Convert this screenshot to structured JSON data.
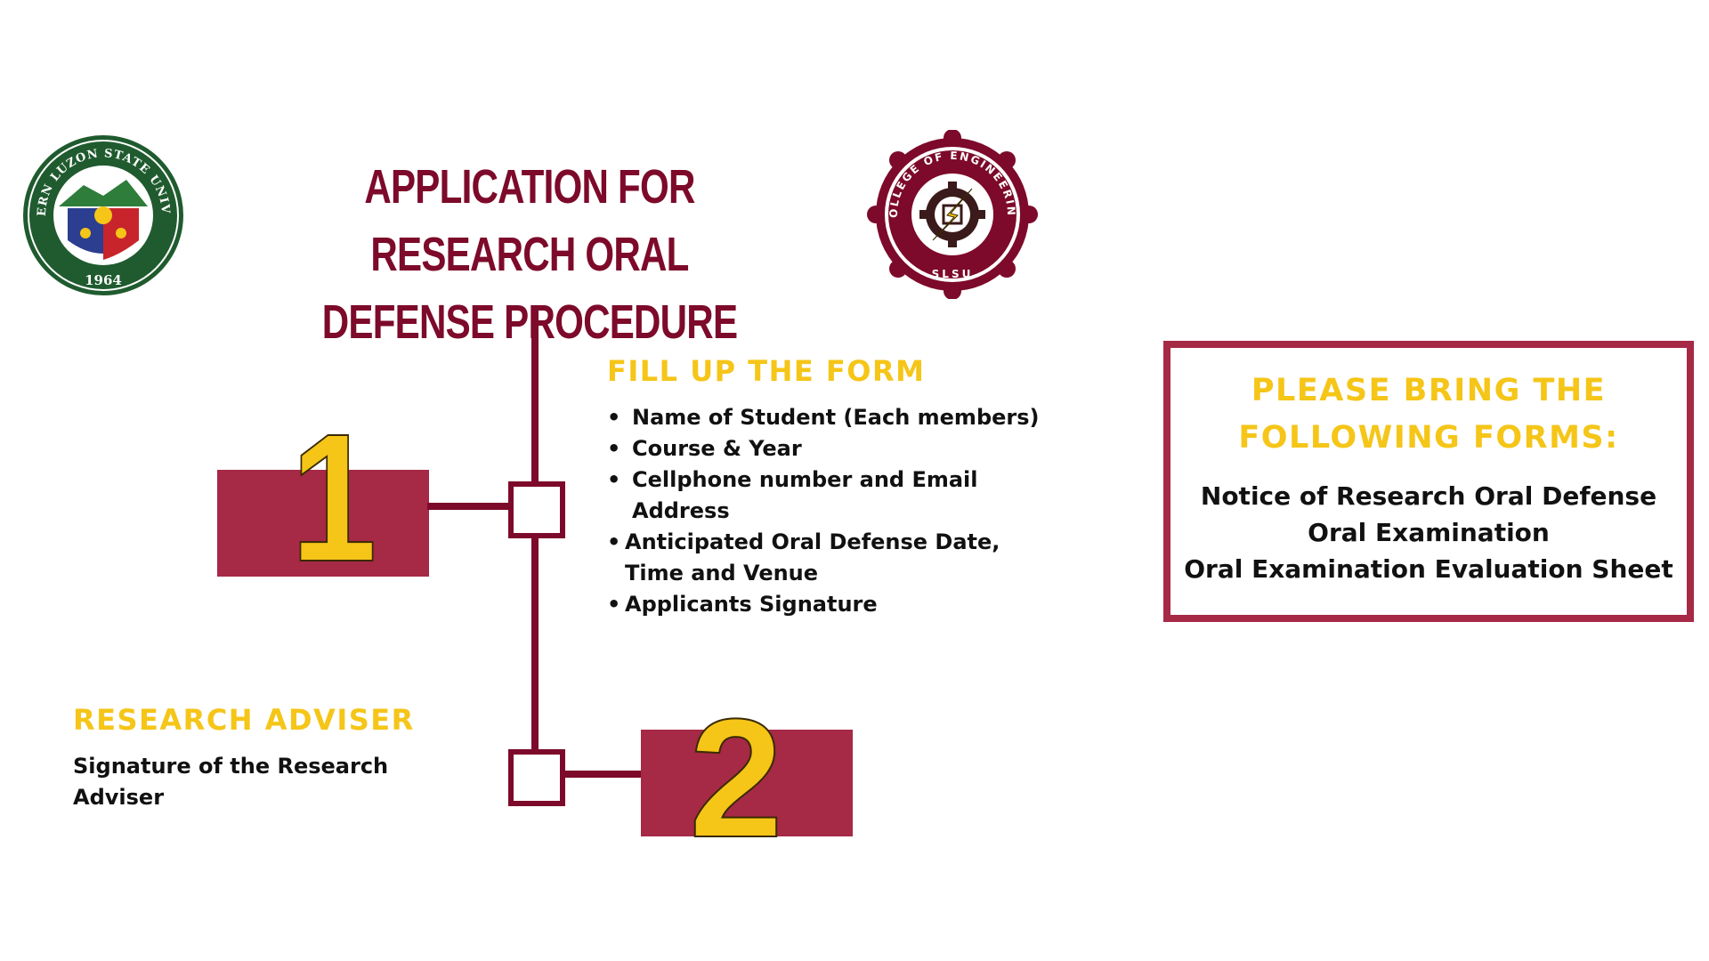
{
  "header": {
    "title_line1": "APPLICATION FOR RESEARCH ORAL",
    "title_line2": "DEFENSE PROCEDURE",
    "left_logo": {
      "icon": "university-seal-icon",
      "text": "SOUTHERN LUZON STATE UNIVERSITY",
      "year": "1964"
    },
    "right_logo": {
      "icon": "engineering-seal-icon",
      "text": "COLLEGE OF ENGINEERING",
      "bottom": "SLSU"
    }
  },
  "steps": [
    {
      "number": "1",
      "heading": "FILL UP THE FORM",
      "items": [
        "Name of Student (Each members)",
        "Course & Year",
        "Cellphone number and Email Address",
        "Anticipated Oral Defense Date, Time and Venue",
        "Applicants Signature"
      ]
    },
    {
      "number": "2",
      "heading": "RESEARCH ADVISER",
      "text": "Signature of the Research Adviser"
    }
  ],
  "forms_box": {
    "title_line1": "PLEASE BRING THE",
    "title_line2": "FOLLOWING FORMS:",
    "forms": [
      "Notice of Research Oral Defense",
      "Oral Examination",
      "Oral Examination Evaluation Sheet"
    ]
  },
  "colors": {
    "maroon": "#7d0a2a",
    "crimson": "#a62945",
    "gold": "#f5c518",
    "seal_green": "#1f5b2e",
    "seal_blue": "#2c3e8f",
    "seal_red": "#c8242b"
  }
}
